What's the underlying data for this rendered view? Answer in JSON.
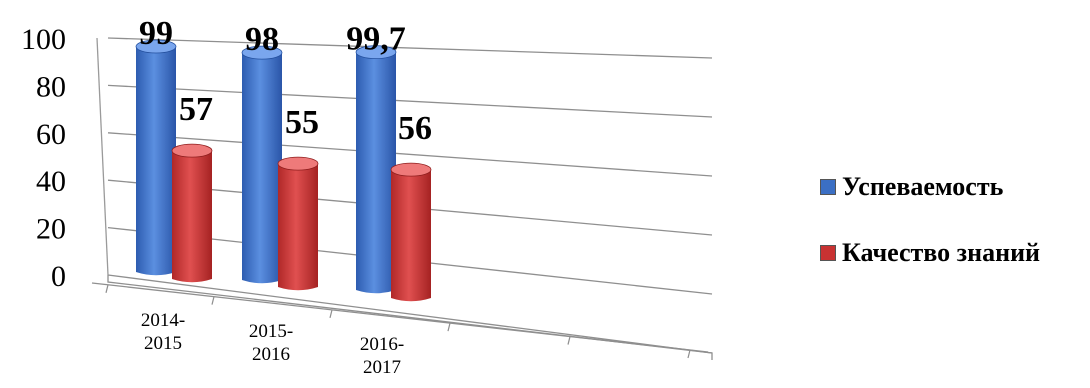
{
  "chart_data": {
    "type": "bar",
    "title": "",
    "xlabel": "",
    "ylabel": "",
    "ylim": [
      0,
      100
    ],
    "yticks": [
      0,
      20,
      40,
      60,
      80,
      100
    ],
    "categories": [
      [
        "2014-",
        "2015"
      ],
      [
        "2015-",
        "2016"
      ],
      [
        "2016-",
        "2017"
      ]
    ],
    "series": [
      {
        "name": "Успеваемость",
        "values": [
          99,
          98,
          99.7
        ],
        "labels": [
          "99",
          "98",
          "99,7"
        ],
        "color": "#3b6fc4"
      },
      {
        "name": "Качество знаний",
        "values": [
          57,
          55,
          56
        ],
        "labels": [
          "57",
          "55",
          "56"
        ],
        "color": "#c83232"
      }
    ],
    "grid": true,
    "legend_position": "right",
    "style": "3d-cylinder"
  }
}
